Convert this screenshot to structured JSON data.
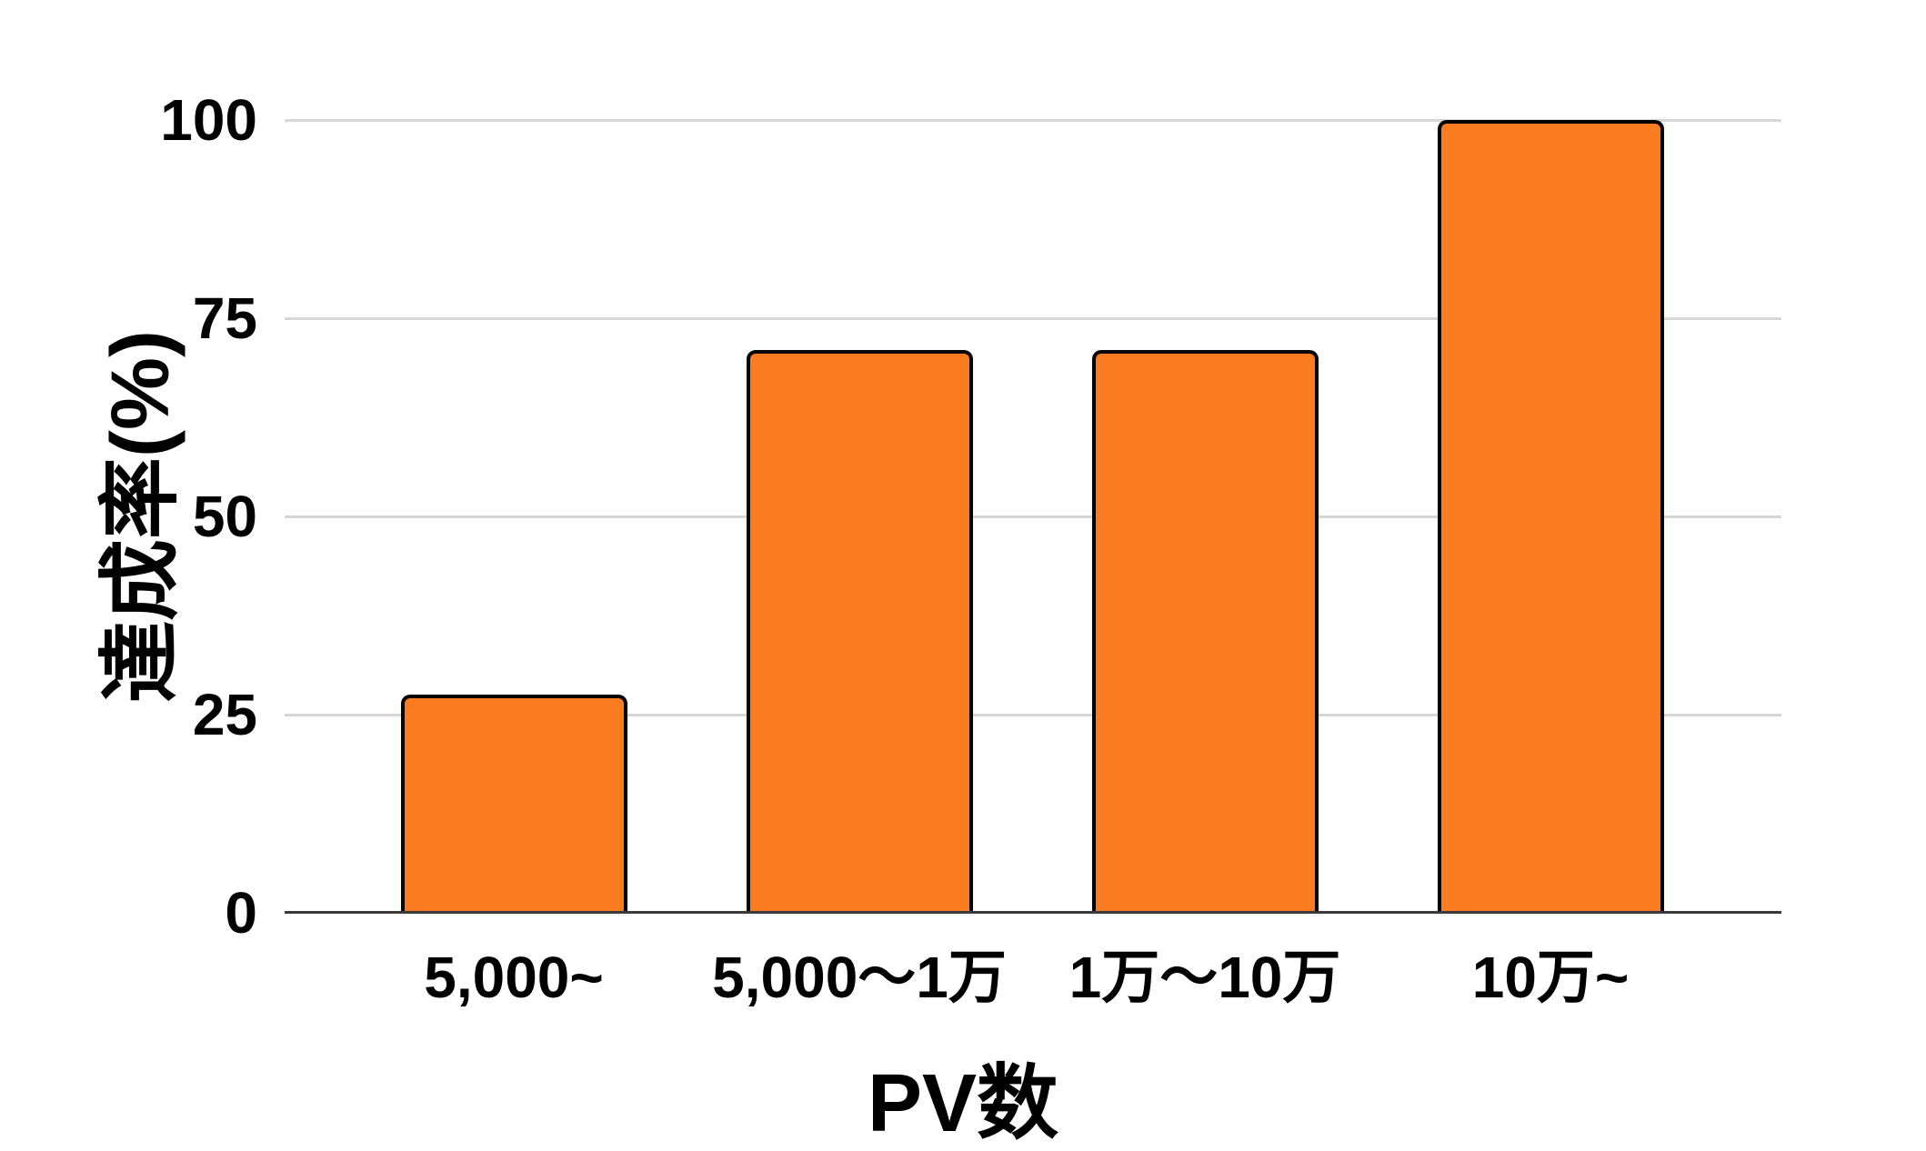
{
  "chart_data": {
    "type": "bar",
    "title": "",
    "categories": [
      "5,000~",
      "5,000〜1万",
      "1万〜10万",
      "10万~"
    ],
    "values": [
      27.5,
      71,
      71,
      100
    ],
    "xlabel": "PV数",
    "ylabel": "達成率(%)",
    "yticks": [
      0,
      25,
      50,
      75,
      100
    ],
    "ylim": [
      0,
      100
    ],
    "grid": true,
    "legend": false,
    "bar_color": "#fb7c20",
    "bar_border_color": "#000000",
    "gridline_color": "#d6d6d6",
    "baseline_color": "#3a3a3a",
    "text_color": "#000000",
    "background_color": "#ffffff"
  }
}
